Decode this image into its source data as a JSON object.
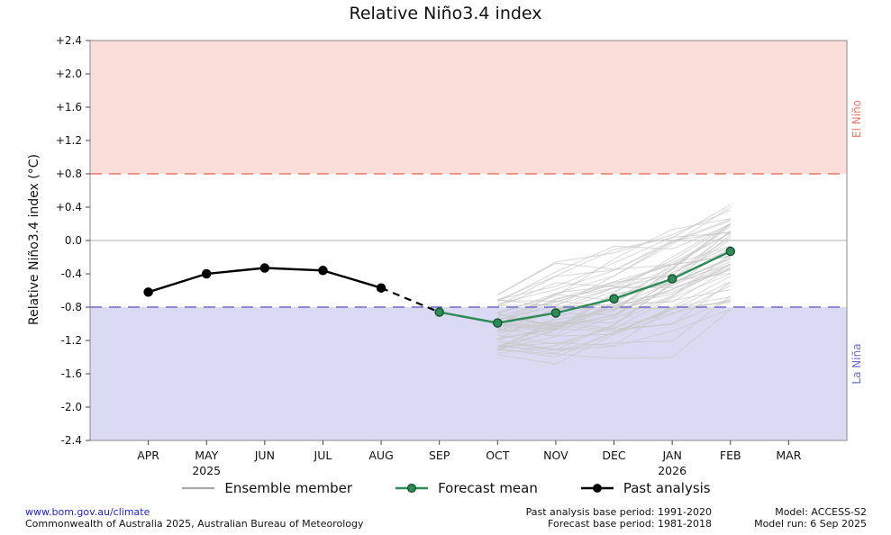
{
  "title": "Relative Niño3.4 index",
  "chart_data": {
    "type": "line",
    "title": "Relative Niño3.4 index",
    "ylabel": "Relative Niño3.4 index (°C)",
    "ylim": [
      -2.4,
      2.4
    ],
    "ytick_labels": [
      "+2.4",
      "+2.0",
      "+1.6",
      "+1.2",
      "+0.8",
      "+0.4",
      "0.0",
      "-0.4",
      "-0.8",
      "-1.2",
      "-1.6",
      "-2.0",
      "-2.4"
    ],
    "x_categories": [
      "APR",
      "MAY",
      "JUN",
      "JUL",
      "AUG",
      "SEP",
      "OCT",
      "NOV",
      "DEC",
      "JAN",
      "FEB",
      "MAR"
    ],
    "year_labels": [
      {
        "month_index": 1,
        "year": "2025"
      },
      {
        "month_index": 9,
        "year": "2026"
      }
    ],
    "regions": {
      "el_nino": {
        "label": "El Niño",
        "threshold": 0.8,
        "fill": "#fbdeda",
        "line_color": "#ee7767"
      },
      "la_nina": {
        "label": "La Niña",
        "threshold": -0.8,
        "fill": "#dadaf2",
        "line_color": "#6b6bc8"
      }
    },
    "zero_line": 0.0,
    "series": [
      {
        "name": "Past analysis",
        "style": "past",
        "months": [
          "APR",
          "MAY",
          "JUN",
          "JUL",
          "AUG"
        ],
        "values": [
          -0.62,
          -0.4,
          -0.33,
          -0.36,
          -0.57
        ]
      },
      {
        "name": "Past to forecast transition",
        "style": "transition",
        "months": [
          "AUG",
          "SEP"
        ],
        "values": [
          -0.57,
          -0.86
        ]
      },
      {
        "name": "Forecast mean",
        "style": "forecast",
        "months": [
          "SEP",
          "OCT",
          "NOV",
          "DEC",
          "JAN",
          "FEB"
        ],
        "values": [
          -0.86,
          -0.99,
          -0.87,
          -0.7,
          -0.46,
          -0.13
        ]
      }
    ],
    "ensemble": {
      "name": "Ensemble member",
      "months": [
        "OCT",
        "NOV",
        "DEC",
        "JAN",
        "FEB"
      ],
      "mean": [
        -0.99,
        -0.87,
        -0.7,
        -0.46,
        -0.13
      ],
      "count": 55,
      "initial_spread": 0.8,
      "step_noise": 0.55,
      "clamp": [
        -1.8,
        1.0
      ],
      "seed": 11
    },
    "colors": {
      "past": "#000000",
      "forecast": "#2e8b57",
      "forecast_marker": "#2e8b57",
      "ensemble": "#c8c8c8",
      "ensemble_legend": "#a8a8a8",
      "zero_line": "#b3b3b3",
      "frame": "#8a8a8a"
    }
  },
  "legend": {
    "items": [
      {
        "label": "Ensemble member"
      },
      {
        "label": "Forecast mean"
      },
      {
        "label": "Past analysis"
      }
    ]
  },
  "footer": {
    "link": "www.bom.gov.au/climate",
    "copyright": "Commonwealth of Australia 2025, Australian Bureau of Meteorology",
    "past_base_period": "Past analysis base period: 1991-2020",
    "forecast_base_period": "Forecast base period: 1981-2018",
    "model": "Model: ACCESS-S2",
    "model_run": "Model run: 6 Sep 2025"
  }
}
